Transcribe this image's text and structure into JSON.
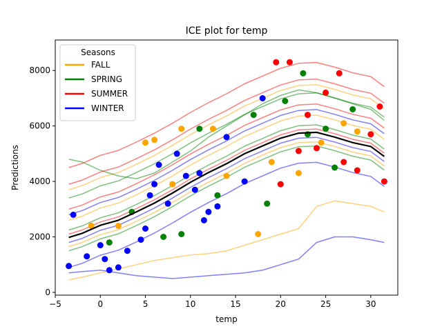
{
  "chart_data": {
    "type": "line",
    "title": "ICE plot for temp",
    "xlabel": "temp",
    "ylabel": "Predictions",
    "xlim": [
      -5,
      33
    ],
    "ylim": [
      -100,
      9100
    ],
    "x_ticks": [
      -5,
      0,
      5,
      10,
      15,
      20,
      25,
      30
    ],
    "y_ticks": [
      0,
      2000,
      4000,
      6000,
      8000
    ],
    "grid": false,
    "legend": {
      "title": "Seasons",
      "placement": "top-left",
      "entries": [
        {
          "label": "FALL",
          "color": "#ffa500"
        },
        {
          "label": "SPRING",
          "color": "#008000"
        },
        {
          "label": "SUMMER",
          "color": "#ff0000"
        },
        {
          "label": "WINTER",
          "color": "#0000ff"
        }
      ]
    },
    "x_grid": [
      -3.5,
      -2,
      0,
      2,
      4,
      6,
      8,
      10,
      12,
      14,
      16,
      18,
      20,
      22,
      24,
      26,
      28,
      30,
      31.5
    ],
    "pdp_line": {
      "color": "#000000",
      "values": [
        1980,
        2130,
        2420,
        2600,
        2900,
        3220,
        3580,
        3970,
        4320,
        4640,
        5000,
        5280,
        5560,
        5740,
        5770,
        5600,
        5400,
        5260,
        4900
      ]
    },
    "series": [
      {
        "season": "FALL",
        "color": "#ffa500",
        "curves": [
          [
            1650,
            1800,
            2080,
            2260,
            2560,
            2880,
            3240,
            3620,
            3970,
            4300,
            4650,
            4950,
            5220,
            5400,
            5430,
            5260,
            5060,
            4920,
            4560
          ],
          [
            2600,
            2750,
            3040,
            3220,
            3520,
            3840,
            4200,
            4590,
            4940,
            5260,
            5620,
            5900,
            6180,
            6360,
            6390,
            6220,
            6020,
            5880,
            5520
          ],
          [
            3700,
            3850,
            4140,
            4320,
            4620,
            4940,
            5300,
            5690,
            6040,
            6360,
            6720,
            7000,
            7280,
            7460,
            7490,
            7320,
            7120,
            6980,
            6620
          ],
          [
            450,
            550,
            700,
            850,
            1000,
            1150,
            1250,
            1350,
            1400,
            1500,
            1700,
            1900,
            2100,
            2300,
            3100,
            3300,
            3200,
            3100,
            2900
          ]
        ],
        "points": [
          [
            -1,
            2400
          ],
          [
            5,
            5400
          ],
          [
            6,
            5500
          ],
          [
            9,
            5900
          ],
          [
            12.5,
            5900
          ],
          [
            17.5,
            2100
          ],
          [
            22,
            4300
          ],
          [
            24.5,
            5400
          ],
          [
            27,
            6100
          ],
          [
            28.5,
            5800
          ],
          [
            2,
            2400
          ],
          [
            8,
            3900
          ],
          [
            14,
            4200
          ],
          [
            19,
            4700
          ]
        ]
      },
      {
        "season": "SPRING",
        "color": "#008000",
        "curves": [
          [
            1500,
            1650,
            1930,
            2110,
            2410,
            2730,
            3090,
            3480,
            3830,
            4150,
            4510,
            4790,
            5070,
            5250,
            5280,
            5110,
            4910,
            4770,
            4410
          ],
          [
            2250,
            2400,
            2690,
            2870,
            3170,
            3490,
            3850,
            4240,
            4590,
            4910,
            5270,
            5550,
            5830,
            6010,
            6040,
            5870,
            5670,
            5530,
            5170
          ],
          [
            3400,
            3550,
            3840,
            4020,
            4320,
            4640,
            5000,
            5390,
            5740,
            6060,
            6420,
            6700,
            6980,
            7160,
            7190,
            7020,
            6820,
            6680,
            6320
          ],
          [
            4800,
            4700,
            4400,
            4200,
            4100,
            4300,
            4700,
            5100,
            5600,
            6000,
            6400,
            6800,
            7100,
            7300,
            7200,
            7000,
            6800,
            6600,
            6200
          ]
        ],
        "points": [
          [
            1,
            1800
          ],
          [
            3.5,
            2900
          ],
          [
            7,
            2000
          ],
          [
            11,
            5900
          ],
          [
            17,
            6400
          ],
          [
            18.5,
            3200
          ],
          [
            20.5,
            6900
          ],
          [
            22.5,
            7900
          ],
          [
            25,
            5900
          ],
          [
            28,
            6600
          ],
          [
            9,
            2100
          ],
          [
            13,
            3500
          ],
          [
            23,
            5700
          ],
          [
            26,
            4500
          ]
        ]
      },
      {
        "season": "SUMMER",
        "color": "#ff0000",
        "curves": [
          [
            2100,
            2250,
            2540,
            2720,
            3020,
            3340,
            3700,
            4090,
            4440,
            4760,
            5120,
            5400,
            5680,
            5860,
            5890,
            5720,
            5520,
            5380,
            5020
          ],
          [
            3000,
            3150,
            3440,
            3620,
            3920,
            4240,
            4600,
            4990,
            5340,
            5660,
            6020,
            6300,
            6580,
            6760,
            6790,
            6620,
            6420,
            6280,
            5920
          ],
          [
            3900,
            4050,
            4340,
            4520,
            4820,
            5140,
            5500,
            5890,
            6240,
            6560,
            6920,
            7200,
            7480,
            7660,
            7690,
            7520,
            7320,
            7180,
            6820
          ],
          [
            4500,
            4650,
            4940,
            5120,
            5420,
            5740,
            6100,
            6490,
            6840,
            7160,
            7520,
            7800,
            8080,
            8260,
            8290,
            8120,
            7920,
            7780,
            7420
          ]
        ],
        "points": [
          [
            19.5,
            8300
          ],
          [
            21,
            8300
          ],
          [
            23,
            6400
          ],
          [
            25,
            7200
          ],
          [
            26.5,
            7900
          ],
          [
            28.5,
            4400
          ],
          [
            30,
            5700
          ],
          [
            31,
            6700
          ],
          [
            31.5,
            4000
          ],
          [
            20,
            3900
          ],
          [
            22,
            5100
          ],
          [
            24,
            5200
          ],
          [
            27,
            4700
          ]
        ]
      },
      {
        "season": "WINTER",
        "color": "#0000ff",
        "curves": [
          [
            900,
            1050,
            1340,
            1520,
            1820,
            2140,
            2500,
            2890,
            3240,
            3560,
            3920,
            4200,
            4480,
            4660,
            4690,
            4520,
            4320,
            4180,
            3820
          ],
          [
            1800,
            1950,
            2240,
            2420,
            2720,
            3040,
            3400,
            3790,
            4140,
            4460,
            4820,
            5100,
            5380,
            5560,
            5590,
            5420,
            5220,
            5080,
            4720
          ],
          [
            2800,
            2950,
            3240,
            3420,
            3720,
            4040,
            4400,
            4790,
            5140,
            5460,
            5820,
            6100,
            6380,
            6560,
            6590,
            6420,
            6220,
            6080,
            5720
          ],
          [
            700,
            750,
            800,
            700,
            600,
            550,
            500,
            550,
            600,
            650,
            700,
            800,
            1000,
            1200,
            1800,
            2000,
            2000,
            1900,
            1800
          ]
        ],
        "points": [
          [
            -3.5,
            950
          ],
          [
            -3,
            2800
          ],
          [
            -1.5,
            1300
          ],
          [
            0,
            1700
          ],
          [
            1,
            800
          ],
          [
            2,
            900
          ],
          [
            4.5,
            1900
          ],
          [
            5,
            2300
          ],
          [
            5.5,
            3500
          ],
          [
            6.5,
            4600
          ],
          [
            7.5,
            3200
          ],
          [
            8.5,
            5000
          ],
          [
            9.5,
            4200
          ],
          [
            10.5,
            3700
          ],
          [
            11,
            4300
          ],
          [
            11.5,
            2600
          ],
          [
            13,
            3100
          ],
          [
            14,
            5600
          ],
          [
            16,
            4000
          ],
          [
            18,
            7000
          ],
          [
            0.5,
            1200
          ],
          [
            3,
            1500
          ],
          [
            6,
            3900
          ],
          [
            12,
            2900
          ]
        ]
      }
    ]
  }
}
